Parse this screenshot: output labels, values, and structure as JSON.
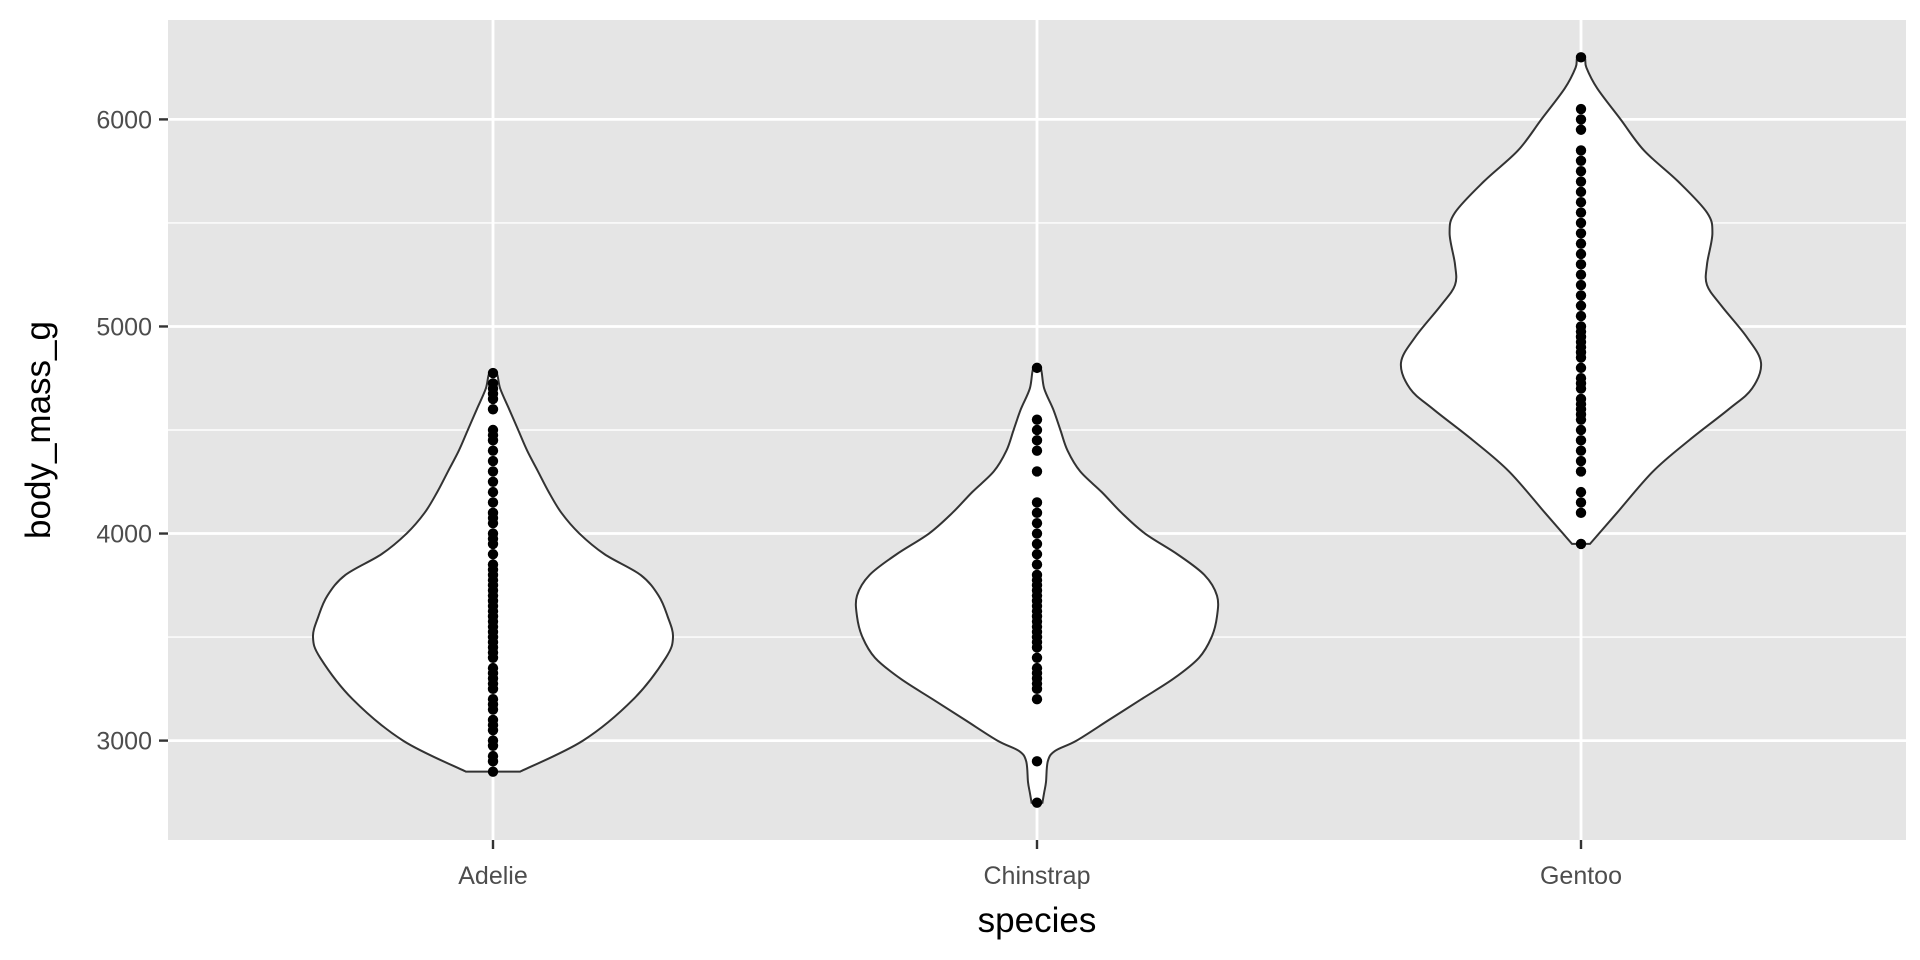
{
  "chart_data": {
    "type": "violin",
    "xlabel": "species",
    "ylabel": "body_mass_g",
    "ylim": [
      2520,
      6480
    ],
    "y_ticks": [
      3000,
      4000,
      5000,
      6000
    ],
    "y_minor_ticks": [
      3500,
      4500,
      5500
    ],
    "grid": true,
    "categories": [
      "Adelie",
      "Chinstrap",
      "Gentoo"
    ],
    "colors": {
      "panel": "#e5e5e5",
      "grid": "#ffffff",
      "violin_fill": "#ffffff",
      "violin_stroke": "#333333",
      "point": "#000000"
    },
    "series": [
      {
        "name": "Adelie",
        "range": [
          2850,
          4775
        ],
        "density": [
          [
            2850,
            0.15
          ],
          [
            3000,
            0.5
          ],
          [
            3200,
            0.78
          ],
          [
            3400,
            0.96
          ],
          [
            3500,
            1.0
          ],
          [
            3600,
            0.97
          ],
          [
            3700,
            0.92
          ],
          [
            3800,
            0.82
          ],
          [
            3900,
            0.62
          ],
          [
            4000,
            0.48
          ],
          [
            4100,
            0.38
          ],
          [
            4200,
            0.31
          ],
          [
            4300,
            0.25
          ],
          [
            4400,
            0.19
          ],
          [
            4500,
            0.14
          ],
          [
            4600,
            0.09
          ],
          [
            4700,
            0.04
          ],
          [
            4775,
            0.02
          ]
        ],
        "points": [
          2850,
          2900,
          2925,
          2975,
          3000,
          3050,
          3075,
          3100,
          3150,
          3175,
          3200,
          3250,
          3275,
          3300,
          3325,
          3350,
          3400,
          3425,
          3450,
          3475,
          3500,
          3525,
          3550,
          3575,
          3600,
          3625,
          3650,
          3675,
          3700,
          3725,
          3750,
          3775,
          3800,
          3825,
          3850,
          3900,
          3950,
          3975,
          4000,
          4050,
          4075,
          4100,
          4150,
          4200,
          4250,
          4300,
          4350,
          4400,
          4450,
          4475,
          4500,
          4600,
          4650,
          4675,
          4700,
          4725,
          4775
        ]
      },
      {
        "name": "Chinstrap",
        "range": [
          2700,
          4800
        ],
        "density": [
          [
            2700,
            0.03
          ],
          [
            2750,
            0.04
          ],
          [
            2800,
            0.05
          ],
          [
            2900,
            0.06
          ],
          [
            2950,
            0.1
          ],
          [
            3000,
            0.22
          ],
          [
            3100,
            0.4
          ],
          [
            3200,
            0.58
          ],
          [
            3300,
            0.76
          ],
          [
            3400,
            0.9
          ],
          [
            3500,
            0.97
          ],
          [
            3600,
            1.0
          ],
          [
            3700,
            1.0
          ],
          [
            3800,
            0.93
          ],
          [
            3900,
            0.78
          ],
          [
            4000,
            0.6
          ],
          [
            4100,
            0.47
          ],
          [
            4200,
            0.36
          ],
          [
            4300,
            0.24
          ],
          [
            4400,
            0.17
          ],
          [
            4500,
            0.13
          ],
          [
            4600,
            0.09
          ],
          [
            4700,
            0.04
          ],
          [
            4800,
            0.02
          ]
        ],
        "points": [
          2700,
          2900,
          3200,
          3250,
          3275,
          3300,
          3325,
          3350,
          3400,
          3450,
          3475,
          3500,
          3525,
          3550,
          3575,
          3600,
          3625,
          3650,
          3675,
          3700,
          3725,
          3750,
          3775,
          3800,
          3850,
          3900,
          3950,
          4000,
          4050,
          4100,
          4150,
          4300,
          4400,
          4450,
          4500,
          4550,
          4800
        ]
      },
      {
        "name": "Gentoo",
        "range": [
          3950,
          6300
        ],
        "density": [
          [
            3950,
            0.05
          ],
          [
            4100,
            0.2
          ],
          [
            4300,
            0.4
          ],
          [
            4450,
            0.6
          ],
          [
            4600,
            0.82
          ],
          [
            4700,
            0.95
          ],
          [
            4825,
            1.0
          ],
          [
            4950,
            0.92
          ],
          [
            5100,
            0.78
          ],
          [
            5200,
            0.7
          ],
          [
            5300,
            0.7
          ],
          [
            5450,
            0.73
          ],
          [
            5550,
            0.7
          ],
          [
            5700,
            0.54
          ],
          [
            5850,
            0.35
          ],
          [
            6000,
            0.22
          ],
          [
            6150,
            0.09
          ],
          [
            6250,
            0.03
          ],
          [
            6300,
            0.02
          ]
        ],
        "points": [
          3950,
          4100,
          4150,
          4200,
          4300,
          4350,
          4400,
          4450,
          4500,
          4550,
          4575,
          4600,
          4625,
          4650,
          4700,
          4725,
          4750,
          4800,
          4850,
          4875,
          4900,
          4925,
          4950,
          4975,
          5000,
          5050,
          5100,
          5150,
          5200,
          5250,
          5300,
          5350,
          5400,
          5450,
          5500,
          5550,
          5600,
          5650,
          5700,
          5750,
          5800,
          5850,
          5950,
          6000,
          6050,
          6300
        ]
      }
    ]
  }
}
